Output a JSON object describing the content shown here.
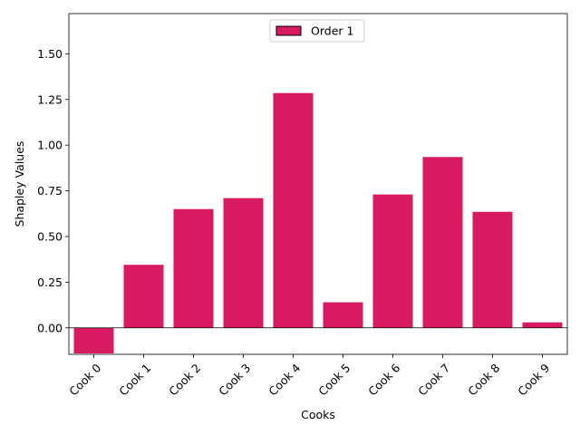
{
  "chart_data": {
    "type": "bar",
    "categories": [
      "Cook 0",
      "Cook 1",
      "Cook 2",
      "Cook 3",
      "Cook 4",
      "Cook 5",
      "Cook 6",
      "Cook 7",
      "Cook 8",
      "Cook 9"
    ],
    "series": [
      {
        "name": "Order 1",
        "color": "#d81b60",
        "values": [
          -0.14,
          0.345,
          0.65,
          0.71,
          1.285,
          0.14,
          0.73,
          0.935,
          0.635,
          0.03
        ]
      }
    ],
    "xlabel": "Cooks",
    "ylabel": "Shapley Values",
    "ylim": [
      -0.145,
      1.72
    ],
    "yticks": [
      0.0,
      0.25,
      0.5,
      0.75,
      1.0,
      1.25,
      1.5
    ],
    "ytick_labels": [
      "0.00",
      "0.25",
      "0.50",
      "0.75",
      "1.00",
      "1.25",
      "1.50"
    ],
    "grid": false,
    "zero_line": true,
    "legend_position": "upper-center",
    "xtick_rotation": "45-degrees"
  }
}
